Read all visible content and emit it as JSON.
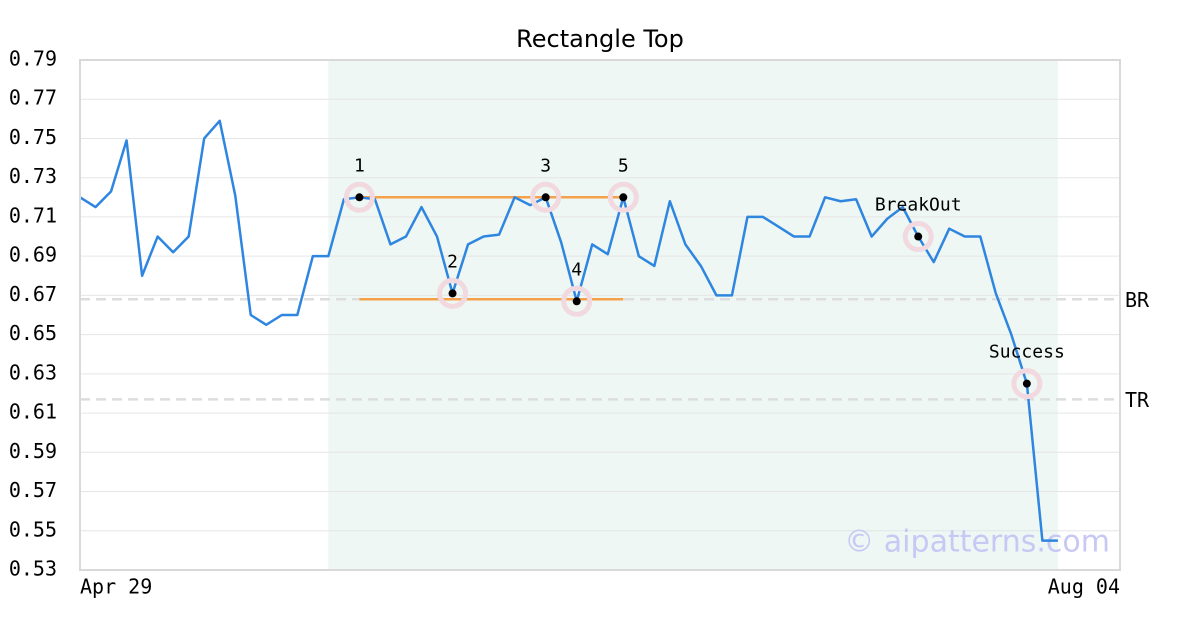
{
  "chart_data": {
    "type": "line",
    "title": "Rectangle Top",
    "categories": [
      "Apr 29",
      null,
      null,
      null,
      null,
      null,
      null,
      null,
      null,
      null,
      null,
      null,
      null,
      null,
      null,
      null,
      null,
      null,
      null,
      null,
      null,
      null,
      null,
      null,
      null,
      null,
      null,
      null,
      null,
      null,
      null,
      null,
      null,
      null,
      null,
      null,
      null,
      null,
      null,
      null,
      null,
      null,
      null,
      null,
      null,
      null,
      null,
      null,
      null,
      null,
      null,
      null,
      null,
      null,
      null,
      null,
      null,
      null,
      null,
      null,
      null,
      null,
      null,
      null,
      null,
      null,
      null,
      "Aug 04"
    ],
    "values": [
      0.72,
      0.715,
      0.723,
      0.749,
      0.68,
      0.7,
      0.692,
      0.7,
      0.75,
      0.759,
      0.721,
      0.66,
      0.655,
      0.66,
      0.66,
      0.69,
      0.69,
      0.719,
      0.72,
      0.719,
      0.696,
      0.7,
      0.715,
      0.7,
      0.671,
      0.696,
      0.7,
      0.701,
      0.72,
      0.716,
      0.72,
      0.697,
      0.667,
      0.696,
      0.691,
      0.72,
      0.69,
      0.685,
      0.718,
      0.696,
      0.685,
      0.67,
      0.67,
      0.71,
      0.71,
      0.705,
      0.7,
      0.7,
      0.72,
      0.718,
      0.719,
      0.7,
      0.709,
      0.715,
      0.7,
      0.687,
      0.704,
      0.7,
      0.7,
      0.671,
      0.65,
      0.625,
      0.545,
      0.545,
      null,
      null,
      null,
      null
    ],
    "color": "#2f86e0",
    "ylim": [
      0.53,
      0.79
    ],
    "yticks": [
      0.53,
      0.55,
      0.57,
      0.59,
      0.61,
      0.63,
      0.65,
      0.67,
      0.69,
      0.71,
      0.73,
      0.75,
      0.77,
      0.79
    ],
    "grid": true,
    "highlight": [
      16,
      63
    ],
    "rectangle": {
      "top": 0.72,
      "bottom": 0.668,
      "start": 18,
      "end": 35,
      "color": "#f5a04a"
    },
    "levels": [
      {
        "label": "BR",
        "value": 0.668
      },
      {
        "label": "TR",
        "value": 0.617
      }
    ],
    "annotations": [
      {
        "label": "1",
        "index": 18
      },
      {
        "label": "2",
        "index": 24
      },
      {
        "label": "3",
        "index": 30
      },
      {
        "label": "4",
        "index": 32
      },
      {
        "label": "5",
        "index": 35
      },
      {
        "label": "BreakOut",
        "index": 54
      },
      {
        "label": "Success",
        "index": 61
      }
    ],
    "watermark": "© aipatterns.com"
  }
}
